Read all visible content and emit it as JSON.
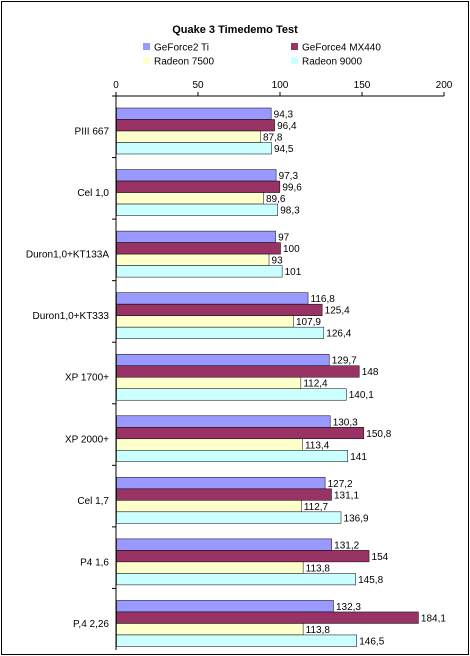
{
  "chart_data": {
    "type": "bar",
    "orientation": "horizontal",
    "title": "Quake 3 Timedemo Test",
    "xlim": [
      0,
      200
    ],
    "x_ticks": [
      "0",
      "50",
      "100",
      "150",
      "200"
    ],
    "x_tick_values": [
      0,
      50,
      100,
      150,
      200
    ],
    "grid": false,
    "legend_position": "top",
    "categories": [
      "PIII 667",
      "Cel 1,0",
      "Duron1,0+KT133A",
      "Duron1,0+KT333",
      "XP 1700+",
      "XP 2000+",
      "Cel 1,7",
      "P4 1,6",
      "P,4 2,26"
    ],
    "series": [
      {
        "name": "GeForce2 Ti",
        "color": "#9999ff",
        "values": [
          94.3,
          97.3,
          97,
          116.8,
          129.7,
          130.3,
          127.2,
          131.2,
          132.3
        ],
        "labels": [
          "94,3",
          "97,3",
          "97",
          "116,8",
          "129,7",
          "130,3",
          "127,2",
          "131,2",
          "132,3"
        ]
      },
      {
        "name": "GeForce4 MX440",
        "color": "#993366",
        "values": [
          96.4,
          99.6,
          100,
          125.4,
          148,
          150.8,
          131.1,
          154,
          184.1
        ],
        "labels": [
          "96,4",
          "99,6",
          "100",
          "125,4",
          "148",
          "150,8",
          "131,1",
          "154",
          "184,1"
        ]
      },
      {
        "name": "Radeon 7500",
        "color": "#ffffcc",
        "values": [
          87.8,
          89.6,
          93,
          107.9,
          112.4,
          113.4,
          112.7,
          113.8,
          113.8
        ],
        "labels": [
          "87,8",
          "89,6",
          "93",
          "107,9",
          "112,4",
          "113,4",
          "112,7",
          "113,8",
          "113,8"
        ]
      },
      {
        "name": "Radeon 9000",
        "color": "#ccffff",
        "values": [
          94.5,
          98.3,
          101,
          126.4,
          140.1,
          141,
          136.9,
          145.8,
          146.5
        ],
        "labels": [
          "94,5",
          "98,3",
          "101",
          "126,4",
          "140,1",
          "141",
          "136,9",
          "145,8",
          "146,5"
        ]
      }
    ]
  }
}
